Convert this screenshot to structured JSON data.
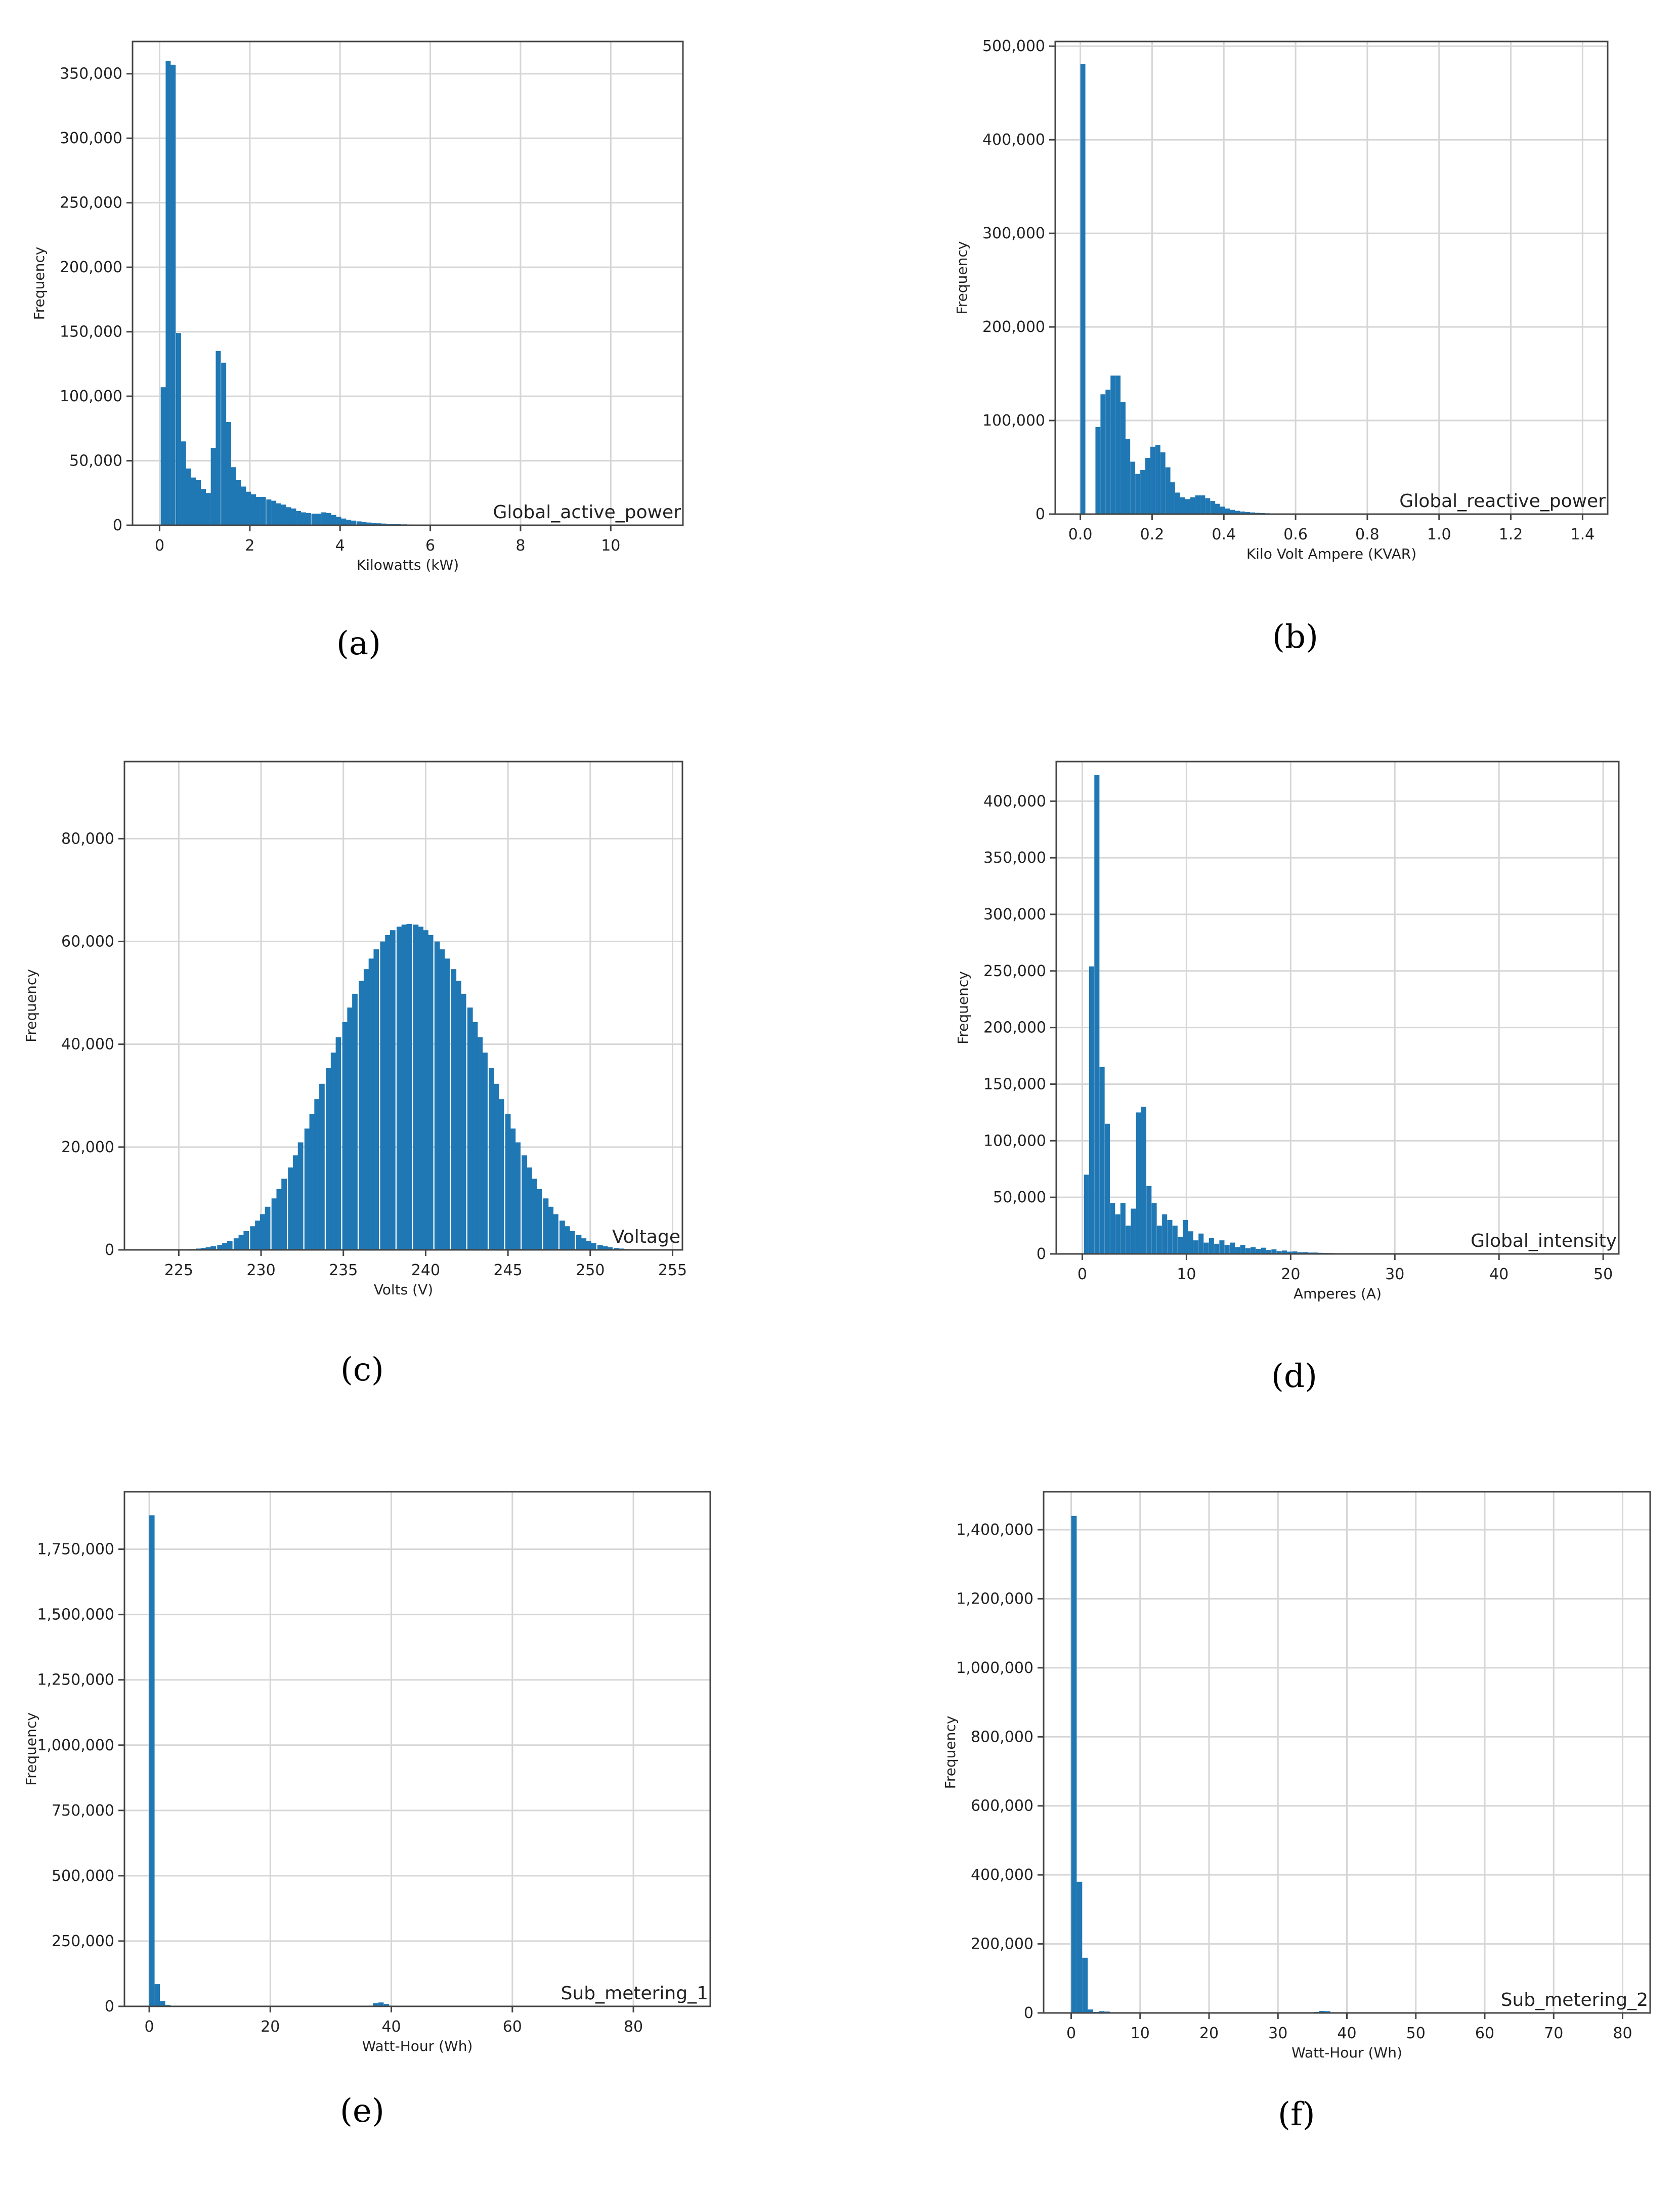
{
  "colors": {
    "bar": "#1f77b4",
    "grid": "#d6d6d6",
    "axis": "#444444",
    "text": "#222222"
  },
  "chart_data": [
    {
      "type": "bar",
      "panel": "(a)",
      "annotation": "Global_active_power",
      "xlabel": "Kilowatts (kW)",
      "ylabel": "Frequency",
      "xlim": [
        -0.6,
        11.6
      ],
      "ylim": [
        0,
        375000
      ],
      "xticks": [
        0,
        2,
        4,
        6,
        8,
        10
      ],
      "yticks": [
        0,
        50000,
        100000,
        150000,
        200000,
        250000,
        300000,
        350000
      ],
      "grid": true,
      "bin_width": 0.112,
      "x": [
        0.08,
        0.19,
        0.3,
        0.42,
        0.53,
        0.64,
        0.75,
        0.86,
        0.97,
        1.08,
        1.19,
        1.3,
        1.42,
        1.53,
        1.64,
        1.75,
        1.86,
        1.97,
        2.08,
        2.19,
        2.3,
        2.42,
        2.53,
        2.64,
        2.75,
        2.86,
        2.97,
        3.08,
        3.19,
        3.3,
        3.42,
        3.53,
        3.64,
        3.75,
        3.86,
        3.97,
        4.08,
        4.19,
        4.3,
        4.42,
        4.53,
        4.64,
        4.75,
        4.86,
        4.97,
        5.08,
        5.19,
        5.3,
        5.42,
        5.53,
        5.64,
        5.75,
        5.86,
        5.97,
        6.08,
        6.19,
        6.3,
        6.42,
        6.53,
        6.64,
        6.75
      ],
      "values": [
        107000,
        360000,
        357000,
        149000,
        65000,
        44000,
        37000,
        35000,
        28000,
        25000,
        60000,
        135000,
        126000,
        80000,
        45000,
        35000,
        30000,
        26000,
        24000,
        22000,
        22000,
        20000,
        19000,
        17000,
        16000,
        14000,
        13000,
        11000,
        10000,
        9500,
        9000,
        9000,
        10000,
        9500,
        8000,
        6500,
        5200,
        4300,
        3600,
        3000,
        2500,
        2100,
        1800,
        1500,
        1300,
        1100,
        900,
        800,
        700,
        600,
        500,
        450,
        400,
        350,
        300,
        250,
        200,
        150,
        120,
        100,
        80
      ]
    },
    {
      "type": "bar",
      "panel": "(b)",
      "annotation": "Global_reactive_power",
      "xlabel": "Kilo Volt Ampere (KVAR)",
      "ylabel": "Frequency",
      "xlim": [
        -0.07,
        1.47
      ],
      "ylim": [
        0,
        505000
      ],
      "xticks": [
        0.0,
        0.2,
        0.4,
        0.6,
        0.8,
        1.0,
        1.2,
        1.4
      ],
      "yticks": [
        0,
        100000,
        200000,
        300000,
        400000,
        500000
      ],
      "grid": true,
      "bin_width": 0.0139,
      "x": [
        0.007,
        0.021,
        0.035,
        0.049,
        0.063,
        0.077,
        0.091,
        0.105,
        0.119,
        0.132,
        0.146,
        0.16,
        0.174,
        0.188,
        0.202,
        0.216,
        0.23,
        0.244,
        0.257,
        0.271,
        0.285,
        0.299,
        0.313,
        0.327,
        0.341,
        0.355,
        0.369,
        0.382,
        0.396,
        0.41,
        0.424,
        0.438,
        0.452,
        0.466,
        0.48,
        0.494,
        0.507,
        0.521,
        0.535,
        0.549,
        0.563,
        0.577,
        0.591,
        0.605,
        0.619,
        0.632,
        0.646
      ],
      "values": [
        481000,
        0,
        0,
        93000,
        128000,
        133000,
        148000,
        148000,
        120000,
        80000,
        56000,
        43000,
        47000,
        60000,
        72000,
        74000,
        66000,
        50000,
        34000,
        23000,
        18000,
        16000,
        18000,
        20000,
        20000,
        17000,
        14000,
        11000,
        8000,
        6000,
        4500,
        3500,
        2800,
        2200,
        1800,
        1400,
        1100,
        900,
        700,
        600,
        500,
        400,
        300,
        250,
        200,
        150,
        100
      ]
    },
    {
      "type": "bar",
      "panel": "(c)",
      "annotation": "Voltage",
      "xlabel": "Volts (V)",
      "ylabel": "Frequency",
      "xlim": [
        221.7,
        255.6
      ],
      "ylim": [
        0,
        95000
      ],
      "xticks": [
        225,
        230,
        235,
        240,
        245,
        250,
        255
      ],
      "yticks": [
        0,
        20000,
        40000,
        60000,
        80000
      ],
      "grid": true,
      "bin_width": 0.33,
      "x": [
        223.2,
        223.5,
        223.8,
        224.2,
        224.5,
        224.8,
        225.2,
        225.5,
        225.8,
        226.2,
        226.5,
        226.8,
        227.1,
        227.5,
        227.8,
        228.1,
        228.5,
        228.8,
        229.1,
        229.5,
        229.8,
        230.1,
        230.4,
        230.8,
        231.1,
        231.4,
        231.8,
        232.1,
        232.4,
        232.8,
        233.1,
        233.4,
        233.7,
        234.1,
        234.4,
        234.7,
        235.1,
        235.4,
        235.7,
        236.1,
        236.4,
        236.7,
        237.0,
        237.4,
        237.7,
        238.0,
        238.4,
        238.7,
        239.0,
        239.4,
        239.7,
        240.0,
        240.3,
        240.7,
        241.0,
        241.3,
        241.7,
        242.0,
        242.3,
        242.7,
        243.0,
        243.3,
        243.6,
        244.0,
        244.3,
        244.6,
        245.0,
        245.3,
        245.6,
        246.0,
        246.3,
        246.6,
        246.9,
        247.3,
        247.6,
        247.9,
        248.3,
        248.6,
        248.9,
        249.3,
        249.6,
        249.9,
        250.2,
        250.6,
        250.9,
        251.2,
        251.6,
        251.9,
        252.2,
        252.6,
        252.9,
        253.2,
        253.5,
        253.9,
        254.2
      ],
      "values": [
        5,
        8,
        13,
        21,
        34,
        52,
        79,
        119,
        176,
        256,
        366,
        515,
        712,
        970,
        1303,
        1725,
        2251,
        2896,
        3674,
        4600,
        5688,
        6948,
        8388,
        10014,
        11828,
        13831,
        16020,
        18386,
        20917,
        23598,
        26408,
        29321,
        32309,
        35338,
        38374,
        41378,
        44314,
        47142,
        49825,
        52327,
        54618,
        56672,
        58468,
        59993,
        61237,
        62196,
        62874,
        63276,
        63408,
        63276,
        62874,
        62196,
        61237,
        59993,
        58468,
        56672,
        54618,
        52327,
        49825,
        47142,
        44314,
        41378,
        38374,
        35338,
        32309,
        29321,
        26408,
        23598,
        20917,
        18386,
        16020,
        13831,
        11828,
        10014,
        8388,
        6948,
        5688,
        4600,
        3674,
        2896,
        2251,
        1725,
        1303,
        970,
        712,
        515,
        366,
        256,
        176,
        119,
        79,
        52,
        34,
        21,
        13
      ],
      "profile_note": ""
    },
    {
      "type": "bar",
      "panel": "(d)",
      "annotation": "Global_intensity",
      "xlabel": "Amperes (A)",
      "ylabel": "Frequency",
      "xlim": [
        -2.5,
        51.5
      ],
      "ylim": [
        0,
        435000
      ],
      "xticks": [
        0,
        10,
        20,
        30,
        40,
        50
      ],
      "yticks": [
        0,
        50000,
        100000,
        150000,
        200000,
        250000,
        300000,
        350000,
        400000
      ],
      "grid": true,
      "bin_width": 0.49,
      "x": [
        0.4,
        0.9,
        1.4,
        1.9,
        2.4,
        2.9,
        3.4,
        3.9,
        4.4,
        4.9,
        5.4,
        5.9,
        6.4,
        6.9,
        7.4,
        7.9,
        8.4,
        8.9,
        9.4,
        9.9,
        10.4,
        10.9,
        11.4,
        11.9,
        12.4,
        12.9,
        13.4,
        13.9,
        14.4,
        14.9,
        15.4,
        15.9,
        16.4,
        16.9,
        17.4,
        17.9,
        18.4,
        18.9,
        19.4,
        19.9,
        20.4,
        20.9,
        21.4,
        21.9,
        22.4,
        22.9,
        23.4,
        23.9,
        24.4,
        24.9,
        25.4,
        25.9,
        26.4,
        26.9,
        27.4,
        27.9
      ],
      "values": [
        70000,
        254000,
        423000,
        165000,
        115000,
        45000,
        35000,
        45000,
        25000,
        40000,
        125000,
        130000,
        60000,
        45000,
        25000,
        35000,
        30000,
        25000,
        15000,
        30000,
        20000,
        12000,
        18000,
        10000,
        14000,
        9000,
        12000,
        8000,
        10000,
        6000,
        8000,
        5000,
        6000,
        4500,
        5500,
        3500,
        4000,
        2500,
        3000,
        2000,
        2200,
        1500,
        1600,
        1200,
        1200,
        1000,
        900,
        800,
        700,
        600,
        500,
        400,
        350,
        300,
        250,
        200
      ]
    },
    {
      "type": "bar",
      "panel": "(e)",
      "annotation": "Sub_metering_1",
      "xlabel": "Watt-Hour (Wh)",
      "ylabel": "Frequency",
      "xlim": [
        -4.1,
        92.7
      ],
      "ylim": [
        0,
        1970000
      ],
      "xticks": [
        0,
        20,
        40,
        60,
        80
      ],
      "yticks": [
        0,
        250000,
        500000,
        750000,
        1000000,
        1250000,
        1500000,
        1750000
      ],
      "grid": true,
      "bin_width": 0.88,
      "x": [
        0.44,
        1.32,
        2.2,
        3.08,
        3.96,
        36.5,
        37.4,
        38.3,
        39.2,
        40.0
      ],
      "values": [
        1880000,
        85000,
        20000,
        5000,
        2000,
        3000,
        12000,
        15000,
        9000,
        3000
      ]
    },
    {
      "type": "bar",
      "panel": "(f)",
      "annotation": "Sub_metering_2",
      "xlabel": "Watt-Hour (Wh)",
      "ylabel": "Frequency",
      "xlim": [
        -4.0,
        84.0
      ],
      "ylim": [
        0,
        1510000
      ],
      "xticks": [
        0,
        10,
        20,
        30,
        40,
        50,
        60,
        70,
        80
      ],
      "yticks": [
        0,
        200000,
        400000,
        600000,
        800000,
        1000000,
        1200000,
        1400000
      ],
      "grid": true,
      "bin_width": 0.8,
      "x": [
        0.4,
        1.2,
        2.0,
        2.8,
        3.6,
        4.4,
        5.2,
        35.6,
        36.4,
        37.2,
        38.0
      ],
      "values": [
        1440000,
        380000,
        160000,
        10000,
        3000,
        5000,
        4000,
        3000,
        6000,
        5000,
        2000
      ]
    }
  ]
}
